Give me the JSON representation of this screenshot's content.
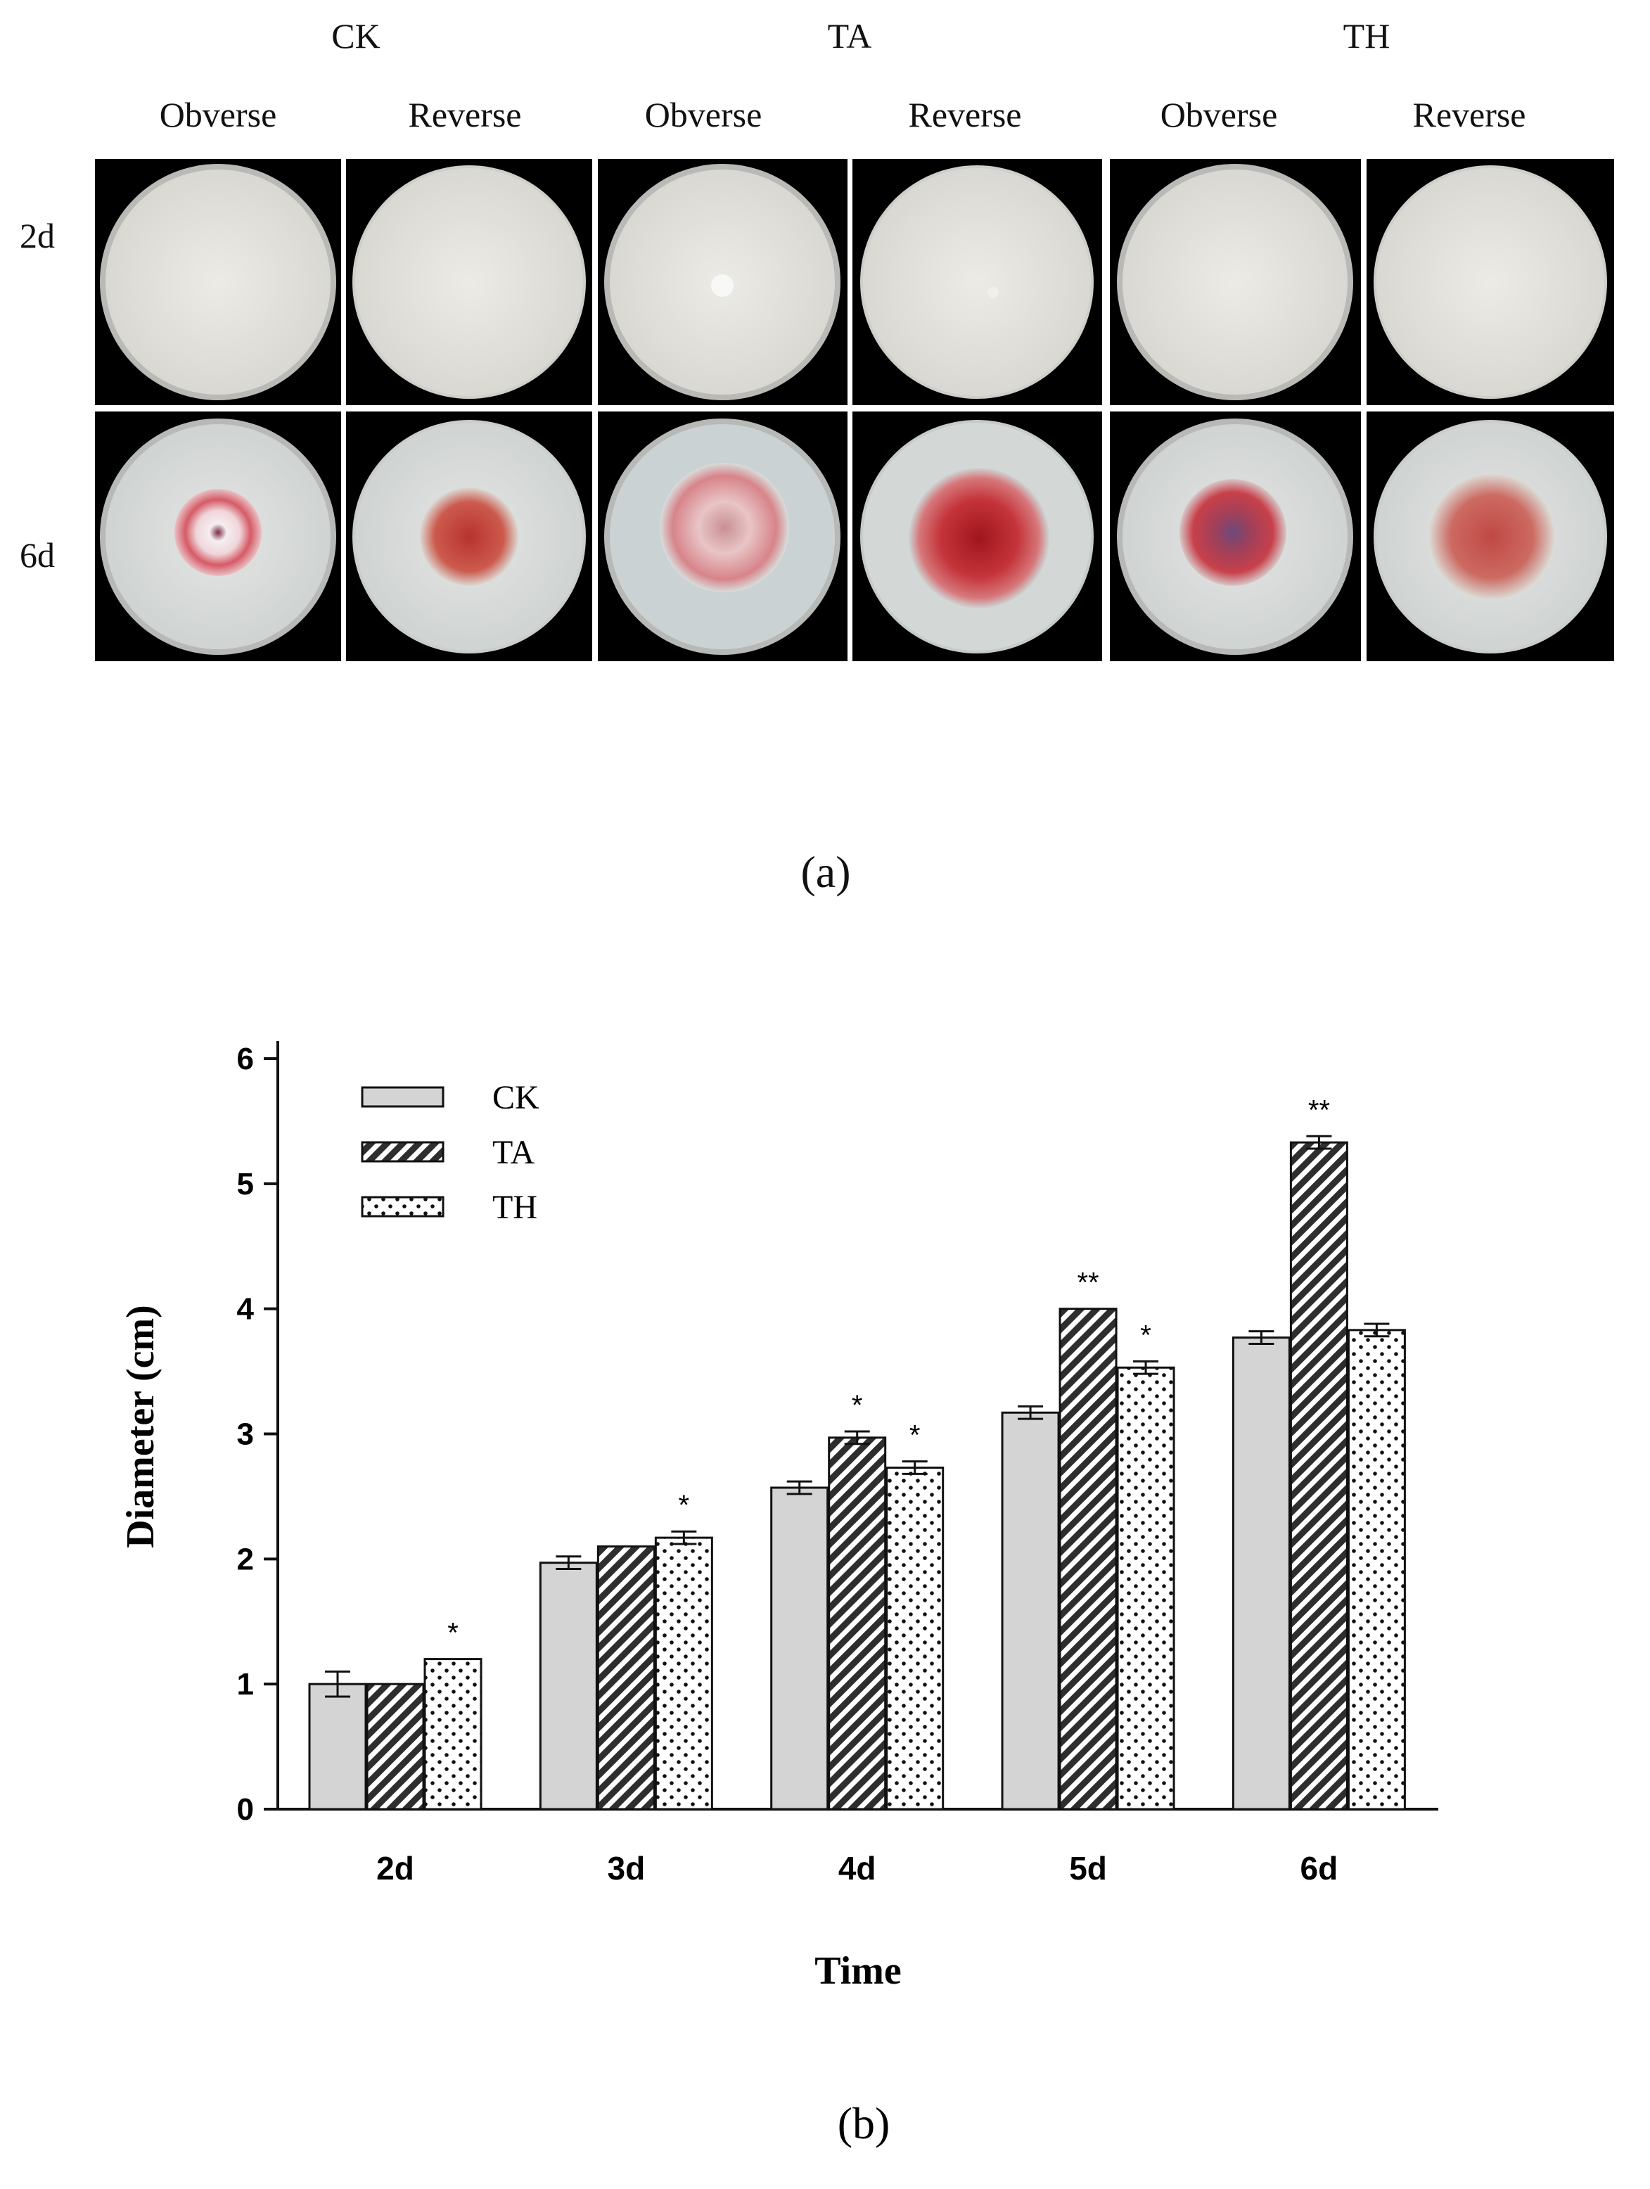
{
  "figure_a": {
    "groups": [
      "CK",
      "TA",
      "TH"
    ],
    "sides": [
      "Obverse",
      "Reverse"
    ],
    "rows": [
      "2d",
      "6d"
    ],
    "panel_label": "(a)",
    "colors": {
      "agar": "#e6e5df",
      "agar_6d": "#dde0df",
      "colony_red": "#c8424a",
      "colony_dark": "#7c2a3c",
      "mycelium_white": "#f2e8ea"
    }
  },
  "chart_data": {
    "type": "bar",
    "panel_label": "(b)",
    "title": "",
    "xlabel": "Time",
    "ylabel": "Diameter (cm)",
    "ylim": [
      0,
      6
    ],
    "yticks": [
      "0",
      "1",
      "2",
      "3",
      "4",
      "5",
      "6"
    ],
    "categories": [
      "2d",
      "3d",
      "4d",
      "5d",
      "6d"
    ],
    "legend_position": "top-left",
    "grid": false,
    "series": [
      {
        "name": "CK",
        "pattern": "solid-gray",
        "values": [
          1.0,
          1.97,
          2.57,
          3.17,
          3.77
        ],
        "errors": [
          0.1,
          0.05,
          0.05,
          0.05,
          0.05
        ],
        "significance": [
          "",
          "",
          "",
          "",
          ""
        ]
      },
      {
        "name": "TA",
        "pattern": "diagonal-hatch",
        "values": [
          1.0,
          2.1,
          2.97,
          4.0,
          5.33
        ],
        "errors": [
          0.0,
          0.0,
          0.05,
          0.0,
          0.05
        ],
        "significance": [
          "",
          "",
          "*",
          "**",
          "**"
        ]
      },
      {
        "name": "TH",
        "pattern": "dots",
        "values": [
          1.2,
          2.17,
          2.73,
          3.53,
          3.83
        ],
        "errors": [
          0.0,
          0.05,
          0.05,
          0.05,
          0.05
        ],
        "significance": [
          "*",
          "*",
          "*",
          "*",
          ""
        ]
      }
    ]
  }
}
